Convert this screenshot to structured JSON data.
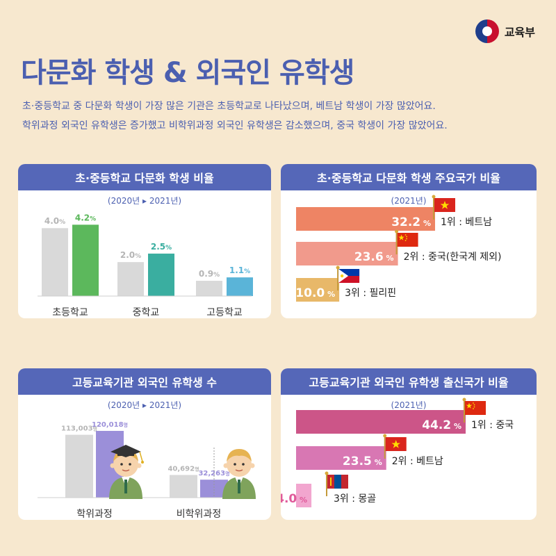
{
  "brand": {
    "name": "교육부"
  },
  "title": "다문화 학생 & 외국인 유학생",
  "subtitle": [
    "초·중등학교 중 다문화 학생이 가장 많은 기관은 초등학교로 나타났으며, 베트남 학생이 가장 많았어요.",
    "학위과정 외국인 유학생은 증가했고 비학위과정 외국인 유학생은 감소했으며, 중국 학생이 가장 많았어요."
  ],
  "chart_data": [
    {
      "type": "bar",
      "title": "초·중등학교 다문화 학생 비율",
      "period": "(2020년 ▸ 2021년)",
      "categories": [
        "초등학교",
        "중학교",
        "고등학교"
      ],
      "unit": "%",
      "series": [
        {
          "name": "2020년",
          "values": [
            4.0,
            2.0,
            0.9
          ],
          "labels": [
            "4.0",
            "2.0",
            "0.9"
          ],
          "color": "#d9d9d9"
        },
        {
          "name": "2021년",
          "values": [
            4.2,
            2.5,
            1.1
          ],
          "labels": [
            "4.2",
            "2.5",
            "1.1"
          ],
          "colors": [
            "#5cb85c",
            "#3aaea0",
            "#5ab4d8"
          ]
        }
      ],
      "ylim": [
        0,
        4.5
      ]
    },
    {
      "type": "bar",
      "title": "초·중등학교 다문화 학생 주요국가 비율",
      "period": "(2021년)",
      "orientation": "horizontal",
      "unit": "%",
      "categories": [
        "1위 : 베트남",
        "2위 : 중국(한국계 제외)",
        "3위 : 필리핀"
      ],
      "values": [
        32.2,
        23.6,
        10.0
      ],
      "labels": [
        "32.2",
        "23.6",
        "10.0"
      ],
      "flags": [
        "vietnam",
        "china",
        "philippines"
      ],
      "colors": [
        "#ee8464",
        "#f19a8c",
        "#e8b869"
      ]
    },
    {
      "type": "bar",
      "title": "고등교육기관 외국인 유학생 수",
      "period": "(2020년 ▸ 2021년)",
      "categories": [
        "학위과정",
        "비학위과정"
      ],
      "unit": "명",
      "series": [
        {
          "name": "2020년",
          "values": [
            113003,
            40692
          ],
          "labels": [
            "113,003",
            "40,692"
          ],
          "color": "#d9d9d9"
        },
        {
          "name": "2021년",
          "values": [
            120018,
            32263
          ],
          "labels": [
            "120,018",
            "32,263"
          ],
          "color": "#9b8fd9"
        }
      ],
      "ylim": [
        0,
        125000
      ]
    },
    {
      "type": "bar",
      "title": "고등교육기관 외국인 유학생 출신국가 비율",
      "period": "(2021년)",
      "orientation": "horizontal",
      "unit": "%",
      "categories": [
        "1위 : 중국",
        "2위 : 베트남",
        "3위 : 몽골"
      ],
      "values": [
        44.2,
        23.5,
        4.0
      ],
      "labels": [
        "44.2",
        "23.5",
        "4.0"
      ],
      "flags": [
        "china",
        "vietnam",
        "mongolia"
      ],
      "colors": [
        "#cc5588",
        "#d877b3",
        "#f2a6cf"
      ]
    }
  ]
}
